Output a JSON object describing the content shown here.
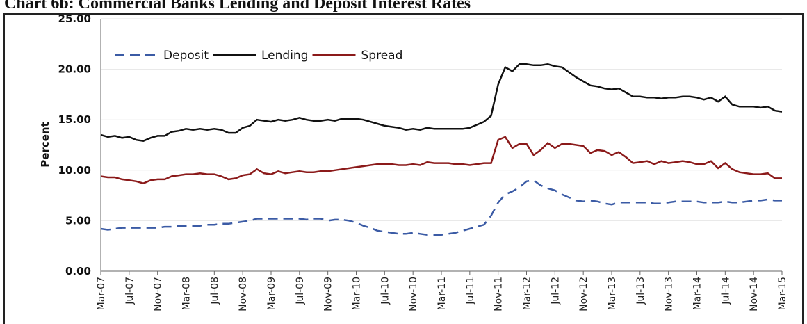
{
  "chart_data": {
    "type": "line",
    "title": "Chart 6b: Commercial Banks Lending and Deposit Interest Rates",
    "y_label": "Percent",
    "categories": [
      "Mar-07",
      null,
      null,
      null,
      "Jul-07",
      null,
      null,
      null,
      "Nov-07",
      null,
      null,
      null,
      "Mar-08",
      null,
      null,
      null,
      "Jul-08",
      null,
      null,
      null,
      "Nov-08",
      null,
      null,
      null,
      "Mar-09",
      null,
      null,
      null,
      "Jul-09",
      null,
      null,
      null,
      "Nov-09",
      null,
      null,
      null,
      "Mar-10",
      null,
      null,
      null,
      "Jul-10",
      null,
      null,
      null,
      "Nov-10",
      null,
      null,
      null,
      "Mar-11",
      null,
      null,
      null,
      "Jul-11",
      null,
      null,
      null,
      "Nov-11",
      null,
      null,
      null,
      "Mar-12",
      null,
      null,
      null,
      "Jul-12",
      null,
      null,
      null,
      "Nov-12",
      null,
      null,
      null,
      "Mar-13",
      null,
      null,
      null,
      "Jul-13",
      null,
      null,
      null,
      "Nov-13",
      null,
      null,
      null,
      "Mar-14",
      null,
      null,
      null,
      "Jul-14",
      null,
      null,
      null,
      "Nov-14",
      null,
      null,
      null,
      "Mar-15"
    ],
    "series": [
      {
        "name": "Deposit",
        "color": "#3b5ba5",
        "dashed": true,
        "values": [
          4.2,
          4.1,
          4.2,
          4.3,
          4.3,
          4.3,
          4.3,
          4.3,
          4.3,
          4.4,
          4.4,
          4.5,
          4.5,
          4.5,
          4.5,
          4.6,
          4.6,
          4.7,
          4.7,
          4.8,
          4.9,
          5.0,
          5.2,
          5.2,
          5.2,
          5.2,
          5.2,
          5.2,
          5.2,
          5.1,
          5.2,
          5.2,
          5.0,
          5.1,
          5.1,
          5.0,
          4.8,
          4.5,
          4.3,
          4.0,
          3.9,
          3.8,
          3.7,
          3.7,
          3.8,
          3.7,
          3.6,
          3.6,
          3.6,
          3.7,
          3.8,
          4.0,
          4.2,
          4.4,
          4.6,
          5.5,
          6.8,
          7.6,
          7.9,
          8.3,
          8.9,
          9.0,
          8.5,
          8.2,
          8.0,
          7.6,
          7.3,
          7.0,
          6.9,
          7.0,
          6.9,
          6.7,
          6.6,
          6.8,
          6.8,
          6.8,
          6.8,
          6.8,
          6.7,
          6.7,
          6.8,
          6.9,
          6.9,
          6.9,
          6.9,
          6.8,
          6.8,
          6.8,
          6.9,
          6.8,
          6.8,
          6.9,
          7.0,
          7.0,
          7.1,
          7.0,
          7.0
        ]
      },
      {
        "name": "Lending",
        "color": "#111111",
        "dashed": false,
        "values": [
          13.5,
          13.3,
          13.4,
          13.2,
          13.3,
          13.0,
          12.9,
          13.2,
          13.4,
          13.4,
          13.8,
          13.9,
          14.1,
          14.0,
          14.1,
          14.0,
          14.1,
          14.0,
          13.7,
          13.7,
          14.2,
          14.4,
          15.0,
          14.9,
          14.8,
          15.0,
          14.9,
          15.0,
          15.2,
          15.0,
          14.9,
          14.9,
          15.0,
          14.9,
          15.1,
          15.1,
          15.1,
          15.0,
          14.8,
          14.6,
          14.4,
          14.3,
          14.2,
          14.0,
          14.1,
          14.0,
          14.2,
          14.1,
          14.1,
          14.1,
          14.1,
          14.1,
          14.2,
          14.5,
          14.8,
          15.4,
          18.5,
          20.2,
          19.8,
          20.5,
          20.5,
          20.4,
          20.4,
          20.5,
          20.3,
          20.2,
          19.7,
          19.2,
          18.8,
          18.4,
          18.3,
          18.1,
          18.0,
          18.1,
          17.7,
          17.3,
          17.3,
          17.2,
          17.2,
          17.1,
          17.2,
          17.2,
          17.3,
          17.3,
          17.2,
          17.0,
          17.2,
          16.8,
          17.3,
          16.5,
          16.3,
          16.3,
          16.3,
          16.2,
          16.3,
          15.9,
          15.8
        ]
      },
      {
        "name": "Spread",
        "color": "#8b1a1a",
        "dashed": false,
        "values": [
          9.4,
          9.3,
          9.3,
          9.1,
          9.0,
          8.9,
          8.7,
          9.0,
          9.1,
          9.1,
          9.4,
          9.5,
          9.6,
          9.6,
          9.7,
          9.6,
          9.6,
          9.4,
          9.1,
          9.2,
          9.5,
          9.6,
          10.1,
          9.7,
          9.6,
          9.9,
          9.7,
          9.8,
          9.9,
          9.8,
          9.8,
          9.9,
          9.9,
          10.0,
          10.1,
          10.2,
          10.3,
          10.4,
          10.5,
          10.6,
          10.6,
          10.6,
          10.5,
          10.5,
          10.6,
          10.5,
          10.8,
          10.7,
          10.7,
          10.7,
          10.6,
          10.6,
          10.5,
          10.6,
          10.7,
          10.7,
          13.0,
          13.3,
          12.2,
          12.6,
          12.6,
          11.5,
          12.0,
          12.7,
          12.2,
          12.6,
          12.6,
          12.5,
          12.4,
          11.7,
          12.0,
          11.9,
          11.5,
          11.8,
          11.3,
          10.7,
          10.8,
          10.9,
          10.6,
          10.9,
          10.7,
          10.8,
          10.9,
          10.8,
          10.6,
          10.6,
          10.9,
          10.2,
          10.7,
          10.1,
          9.8,
          9.7,
          9.6,
          9.6,
          9.7,
          9.2,
          9.2
        ]
      }
    ],
    "ylim": [
      0,
      25
    ],
    "yticks": [
      {
        "value": 0,
        "label": "0.00"
      },
      {
        "value": 5,
        "label": "5.00"
      },
      {
        "value": 10,
        "label": "10.00"
      },
      {
        "value": 15,
        "label": "15.00"
      },
      {
        "value": 20,
        "label": "20.00"
      },
      {
        "value": 25,
        "label": "25.00"
      }
    ],
    "grid": true,
    "legend": "top-left"
  }
}
